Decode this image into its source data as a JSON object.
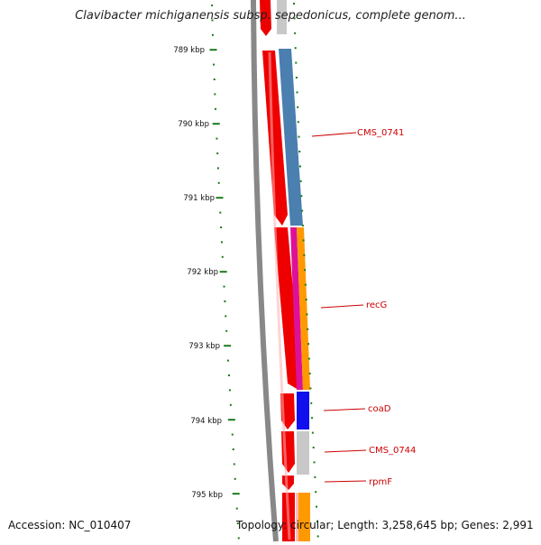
{
  "title": "Clavibacter michiganensis subsp. sepedonicus, complete genom...",
  "footer": {
    "accession": "Accession: NC_010407",
    "stats": "Topology: circular; Length: 3,258,645 bp; Genes: 2,991"
  },
  "ticks": [
    {
      "label": "789 kbp"
    },
    {
      "label": "790 kbp"
    },
    {
      "label": "791 kbp"
    },
    {
      "label": "792 kbp"
    },
    {
      "label": "793 kbp"
    },
    {
      "label": "794 kbp"
    },
    {
      "label": "795 kbp"
    }
  ],
  "gene_labels": [
    {
      "label": "CMS_0741",
      "color": "#cc0000"
    },
    {
      "label": "recG",
      "color": "#cc0000"
    },
    {
      "label": "coaD",
      "color": "#cc0000"
    },
    {
      "label": "CMS_0744",
      "color": "#cc0000"
    },
    {
      "label": "rpmF",
      "color": "#cc0000"
    }
  ],
  "colors": {
    "tick": "#1a7a1a",
    "backbone": "#888888",
    "cds": "#ee0000",
    "blue_steel": "#4a7fb0",
    "orange": "#ff9900",
    "magenta": "#dd1199",
    "blue": "#1010ee",
    "grey": "#c8c8c8"
  }
}
